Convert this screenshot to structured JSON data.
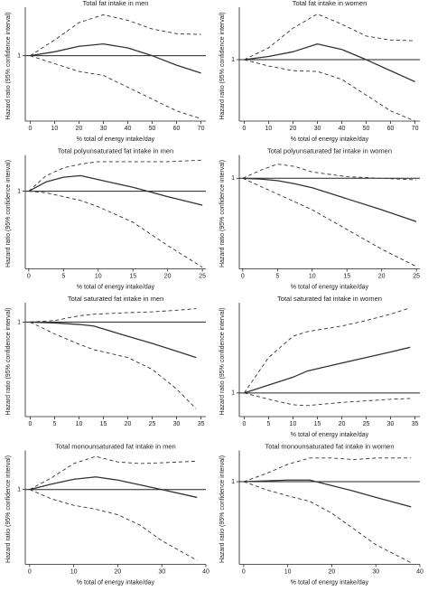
{
  "chart_data": [
    {
      "type": "line",
      "title": "Total fat intake in men",
      "xlabel": "% total of energy intake/day",
      "ylabel": "Hazard ratio (95% confidence interval)",
      "x": [
        0,
        10,
        20,
        30,
        40,
        50,
        60,
        70
      ],
      "xlim": [
        -2,
        72
      ],
      "xticks": [
        0,
        10,
        20,
        30,
        40,
        50,
        60,
        70
      ],
      "ylim": [
        0.17,
        1.57
      ],
      "yticks": [
        1
      ],
      "grid": true,
      "series": [
        {
          "color": "#333333",
          "style": "solid",
          "values": [
            1,
            1.05,
            1.12,
            1.15,
            1.1,
            1.0,
            0.88,
            0.78
          ]
        },
        {
          "color": "#333333",
          "style": "dashed",
          "values": [
            1,
            1.2,
            1.42,
            1.52,
            1.45,
            1.34,
            1.28,
            1.27
          ]
        },
        {
          "color": "#333333",
          "style": "dashed",
          "values": [
            1,
            0.9,
            0.8,
            0.75,
            0.6,
            0.45,
            0.3,
            0.2
          ]
        }
      ]
    },
    {
      "type": "line",
      "title": "Total fat intake in women",
      "xlabel": "% total of energy intake/day",
      "ylabel": "Hazard ratio (95% confidence interval)",
      "x": [
        0,
        10,
        20,
        30,
        40,
        50,
        60,
        70
      ],
      "xlim": [
        -2,
        72
      ],
      "xticks": [
        0,
        10,
        20,
        30,
        40,
        50,
        60,
        70
      ],
      "ylim": [
        0.22,
        1.62
      ],
      "yticks": [
        1
      ],
      "grid": true,
      "series": [
        {
          "color": "#333333",
          "style": "solid",
          "values": [
            1,
            1.04,
            1.1,
            1.2,
            1.13,
            1.0,
            0.86,
            0.72
          ]
        },
        {
          "color": "#333333",
          "style": "dashed",
          "values": [
            1,
            1.15,
            1.4,
            1.58,
            1.45,
            1.3,
            1.25,
            1.24
          ]
        },
        {
          "color": "#333333",
          "style": "dashed",
          "values": [
            1,
            0.92,
            0.86,
            0.85,
            0.75,
            0.55,
            0.35,
            0.22
          ]
        }
      ]
    },
    {
      "type": "line",
      "title": "Total polyunsaturated fat intake in men",
      "xlabel": "% total of energy intake/day",
      "ylabel": "Hazard ratio (95% confidence interval)",
      "x": [
        0,
        2.5,
        5,
        7.5,
        10,
        15,
        20,
        25
      ],
      "xlim": [
        -0.5,
        25.5
      ],
      "xticks": [
        0,
        5,
        10,
        15,
        20,
        25
      ],
      "ylim": [
        0,
        1.42
      ],
      "yticks": [
        1
      ],
      "grid": true,
      "series": [
        {
          "color": "#333333",
          "style": "solid",
          "values": [
            1,
            1.12,
            1.18,
            1.2,
            1.15,
            1.05,
            0.93,
            0.82
          ]
        },
        {
          "color": "#333333",
          "style": "dashed",
          "values": [
            1,
            1.2,
            1.3,
            1.35,
            1.38,
            1.38,
            1.38,
            1.4
          ]
        },
        {
          "color": "#333333",
          "style": "dashed",
          "values": [
            1,
            0.98,
            0.93,
            0.88,
            0.8,
            0.6,
            0.3,
            0.02
          ]
        }
      ]
    },
    {
      "type": "line",
      "title": "Total polyunsaturated fat intake in women",
      "xlabel": "% total of energy intake/day",
      "ylabel": "Hazard ratio (95% confidence interval)",
      "x": [
        0,
        2.5,
        5,
        7.5,
        10,
        15,
        20,
        25
      ],
      "xlim": [
        -0.5,
        25.5
      ],
      "xticks": [
        0,
        5,
        10,
        15,
        20,
        25
      ],
      "ylim": [
        -0.15,
        1.25
      ],
      "yticks": [
        1
      ],
      "grid": true,
      "series": [
        {
          "color": "#333333",
          "style": "solid",
          "values": [
            1,
            0.99,
            0.97,
            0.93,
            0.88,
            0.74,
            0.6,
            0.45
          ]
        },
        {
          "color": "#333333",
          "style": "dashed",
          "values": [
            1,
            1.1,
            1.18,
            1.15,
            1.08,
            1.02,
            1.0,
            0.98
          ]
        },
        {
          "color": "#333333",
          "style": "dashed",
          "values": [
            1,
            0.9,
            0.8,
            0.7,
            0.6,
            0.35,
            0.1,
            -0.12
          ]
        }
      ]
    },
    {
      "type": "line",
      "title": "Total saturated fat intake in men",
      "ylabel": "Hazard ratio (95% confidence interval)",
      "x": [
        0,
        5,
        10,
        13,
        20,
        25,
        30,
        34
      ],
      "xlim": [
        -1,
        36
      ],
      "xticks": [
        0,
        5,
        10,
        15,
        20,
        25,
        30,
        35
      ],
      "ylim": [
        -0.2,
        1.2
      ],
      "yticks": [
        1
      ],
      "grid": true,
      "series": [
        {
          "color": "#333333",
          "style": "solid",
          "values": [
            1,
            0.99,
            0.97,
            0.95,
            0.82,
            0.73,
            0.63,
            0.55
          ]
        },
        {
          "color": "#333333",
          "style": "dashed",
          "values": [
            1,
            1.02,
            1.08,
            1.1,
            1.12,
            1.13,
            1.15,
            1.17
          ]
        },
        {
          "color": "#333333",
          "style": "dashed",
          "values": [
            1,
            0.85,
            0.72,
            0.65,
            0.55,
            0.4,
            0.15,
            -0.1
          ]
        }
      ]
    },
    {
      "type": "line",
      "title": "Total saturated fat intake in women",
      "xlabel": "% total of energy intake/day",
      "ylabel": "Hazard ratio (95% confidence interval)",
      "x": [
        0,
        5,
        10,
        13,
        20,
        25,
        30,
        34
      ],
      "xlim": [
        -1,
        36
      ],
      "xticks": [
        0,
        5,
        10,
        15,
        20,
        25,
        30,
        35
      ],
      "ylim": [
        0.7,
        2.1
      ],
      "yticks": [
        1
      ],
      "grid": true,
      "series": [
        {
          "color": "#333333",
          "style": "solid",
          "values": [
            1,
            1.1,
            1.2,
            1.28,
            1.38,
            1.45,
            1.52,
            1.58
          ]
        },
        {
          "color": "#333333",
          "style": "dashed",
          "values": [
            1,
            1.45,
            1.72,
            1.78,
            1.85,
            1.92,
            2.0,
            2.08
          ]
        },
        {
          "color": "#333333",
          "style": "dashed",
          "values": [
            1,
            0.92,
            0.85,
            0.84,
            0.88,
            0.9,
            0.92,
            0.93
          ]
        }
      ]
    },
    {
      "type": "line",
      "title": "Total monounsaturated fat intake in men",
      "xlabel": "% total of energy intake/day",
      "ylabel": "Hazard ratio (95% confidence interval)",
      "x": [
        0,
        5,
        10,
        15,
        20,
        25,
        30,
        38
      ],
      "xlim": [
        -1,
        40
      ],
      "xticks": [
        0,
        10,
        20,
        30,
        40
      ],
      "ylim": [
        0.05,
        1.45
      ],
      "yticks": [
        1
      ],
      "grid": true,
      "series": [
        {
          "color": "#333333",
          "style": "solid",
          "values": [
            1,
            1.07,
            1.13,
            1.16,
            1.12,
            1.06,
            1.0,
            0.9
          ]
        },
        {
          "color": "#333333",
          "style": "dashed",
          "values": [
            1,
            1.15,
            1.33,
            1.42,
            1.35,
            1.33,
            1.34,
            1.36
          ]
        },
        {
          "color": "#333333",
          "style": "dashed",
          "values": [
            1,
            0.88,
            0.8,
            0.75,
            0.68,
            0.55,
            0.35,
            0.1
          ]
        }
      ]
    },
    {
      "type": "line",
      "title": "Total monounsaturated fat intake in women",
      "xlabel": "% total of energy intake/day",
      "ylabel": "Hazard ratio (95% confidence interval)",
      "x": [
        0,
        5,
        10,
        15,
        20,
        25,
        30,
        38
      ],
      "xlim": [
        -1,
        40
      ],
      "xticks": [
        0,
        10,
        20,
        30,
        40
      ],
      "ylim": [
        -0.05,
        1.35
      ],
      "yticks": [
        1
      ],
      "grid": true,
      "series": [
        {
          "color": "#333333",
          "style": "solid",
          "values": [
            1,
            1.01,
            1.02,
            1.02,
            0.95,
            0.88,
            0.8,
            0.68
          ]
        },
        {
          "color": "#333333",
          "style": "dashed",
          "values": [
            1,
            1.1,
            1.22,
            1.3,
            1.3,
            1.28,
            1.3,
            1.3
          ]
        },
        {
          "color": "#333333",
          "style": "dashed",
          "values": [
            1,
            0.9,
            0.82,
            0.75,
            0.6,
            0.4,
            0.2,
            -0.03
          ]
        }
      ]
    }
  ]
}
